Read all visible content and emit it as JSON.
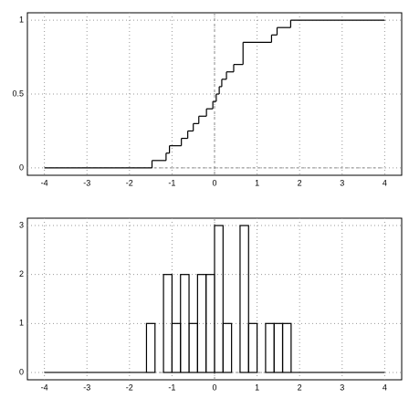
{
  "chart_data": [
    {
      "type": "step",
      "x": [
        -4,
        -1.47,
        -1.14,
        -1.06,
        -0.78,
        -0.63,
        -0.5,
        -0.37,
        -0.19,
        -0.04,
        0.04,
        0.11,
        0.17,
        0.28,
        0.45,
        0.67,
        1.34,
        1.47,
        1.79,
        4
      ],
      "values": [
        0,
        0.05,
        0.1,
        0.15,
        0.2,
        0.25,
        0.3,
        0.35,
        0.4,
        0.45,
        0.5,
        0.55,
        0.6,
        0.65,
        0.7,
        0.85,
        0.9,
        0.95,
        1,
        1
      ],
      "color": "#000000",
      "xlim": [
        -4.4,
        4.4
      ],
      "xticks": [
        -4,
        -3,
        -2,
        -1,
        0,
        1,
        2,
        3,
        4
      ],
      "ylim": [
        -0.05,
        1.05
      ],
      "yticks": [
        0,
        0.5,
        1
      ],
      "grid": true
    },
    {
      "type": "histogram",
      "bins": [
        -1.6,
        -1.4,
        -1.2,
        -1.0,
        -0.8,
        -0.6,
        -0.4,
        -0.2,
        0,
        0.2,
        0.4,
        0.6,
        0.8,
        1.0,
        1.2,
        1.4,
        1.6,
        1.8
      ],
      "values": [
        1,
        0,
        2,
        1,
        2,
        1,
        2,
        2,
        3,
        1,
        0,
        3,
        1,
        0,
        1,
        1,
        1
      ],
      "color": "#000000",
      "xlim": [
        -4.4,
        4.4
      ],
      "xticks": [
        -4,
        -3,
        -2,
        -1,
        0,
        1,
        2,
        3,
        4
      ],
      "ylim": [
        -0.15,
        3.15
      ],
      "yticks": [
        0,
        1,
        2,
        3
      ],
      "grid": true
    }
  ]
}
